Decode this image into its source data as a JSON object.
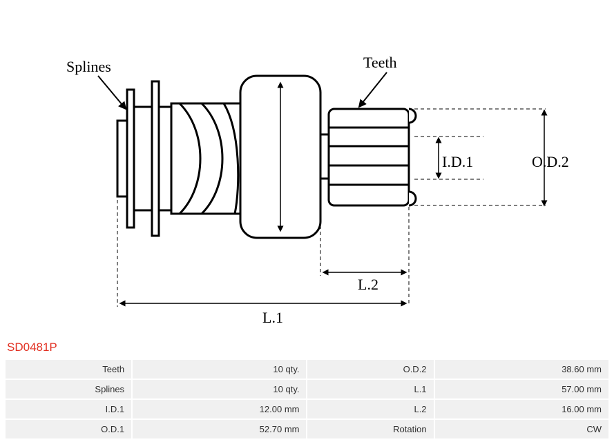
{
  "part_code": "SD0481P",
  "diagram": {
    "labels": {
      "splines": "Splines",
      "teeth": "Teeth",
      "od1": "O.D.1",
      "od2": "O.D.2",
      "id1": "I.D.1",
      "l1": "L.1",
      "l2": "L.2"
    },
    "stroke_color": "#000000",
    "stroke_width_main": 3,
    "stroke_width_dim": 1.2,
    "background": "#ffffff",
    "font_family": "Times New Roman, serif",
    "label_fontsize": 22
  },
  "specs": {
    "rows": [
      {
        "k1": "Teeth",
        "v1": "10 qty.",
        "k2": "O.D.2",
        "v2": "38.60 mm"
      },
      {
        "k1": "Splines",
        "v1": "10 qty.",
        "k2": "L.1",
        "v2": "57.00 mm"
      },
      {
        "k1": "I.D.1",
        "v1": "12.00 mm",
        "k2": "L.2",
        "v2": "16.00 mm"
      },
      {
        "k1": "O.D.1",
        "v1": "52.70 mm",
        "k2": "Rotation",
        "v2": "CW"
      }
    ]
  }
}
